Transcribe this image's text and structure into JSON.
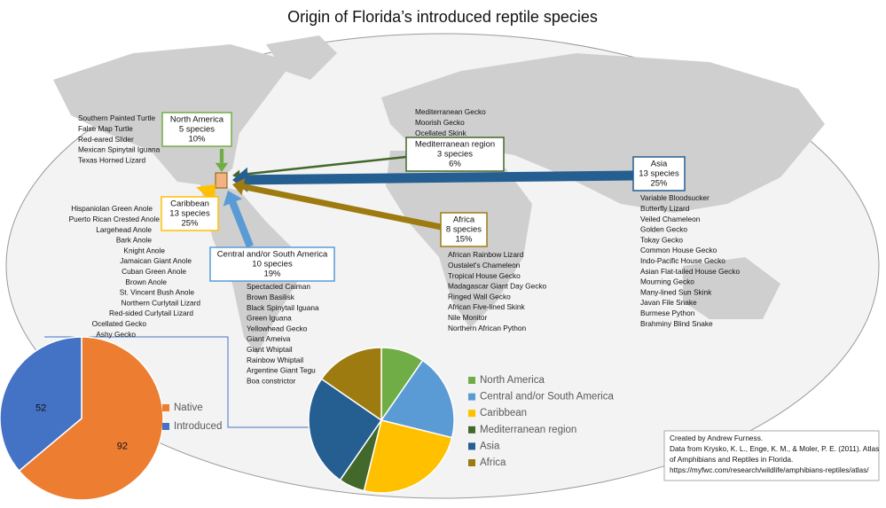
{
  "title": "Origin of Florida’s introduced reptile species",
  "regions": [
    {
      "name": "North America",
      "count": "5 species",
      "share": "10%",
      "species": [
        "Southern Painted Turtle",
        "False Map Turtle",
        "Red-eared Slider",
        "Mexican Spinytail Iguana",
        "Texas Horned Lizard"
      ]
    },
    {
      "name": "Central and/or South America",
      "count": "10 species",
      "share": "19%",
      "species": [
        "Spectacled Caiman",
        "Brown Basilisk",
        "Black Spinytail Iguana",
        "Green Iguana",
        "Yellowhead Gecko",
        "Giant Ameiva",
        "Giant Whiptail",
        "Rainbow Whiptail",
        "Argentine Giant Tegu",
        "Boa constrictor"
      ]
    },
    {
      "name": "Caribbean",
      "count": "13 species",
      "share": "25%",
      "species": [
        "Hispaniolan Green Anole",
        "Puerto Rican Crested Anole",
        "Largehead Anole",
        "Bark Anole",
        "Knight Anole",
        "Jamaican Giant Anole",
        "Cuban Green Anole",
        "Brown Anole",
        "St. Vincent Bush Anole",
        "Northern Curlytail Lizard",
        "Red-sided Curlytail Lizard",
        "Ocellated Gecko",
        "Ashy Gecko"
      ]
    },
    {
      "name": "Mediterranean region",
      "count": "3 species",
      "share": "6%",
      "species": [
        "Mediterranean Gecko",
        "Moorish Gecko",
        "Ocellated Skink"
      ]
    },
    {
      "name": "Asia",
      "count": "13 species",
      "share": "25%",
      "species": [
        "Variable Bloodsucker",
        "Butterfly Lizard",
        "Veiled Chameleon",
        "Golden Gecko",
        "Tokay Gecko",
        "Common House Gecko",
        "Indo-Pacific House Gecko",
        "Asian Flat-tailed House Gecko",
        "Mourning Gecko",
        "Many-lined Sun Skink",
        "Javan File Snake",
        "Burmese Python",
        "Brahminy Blind Snake"
      ]
    },
    {
      "name": "Africa",
      "count": "8 species",
      "share": "15%",
      "species": [
        "African Rainbow Lizard",
        "Oustalet's Chameleon",
        "Tropical House Gecko",
        "Madagascar Giant Day Gecko",
        "Ringed Wall Gecko",
        "African Five-lined Skink",
        "Nile Monitor",
        "Northern African Python"
      ]
    }
  ],
  "credit": [
    "Created by Andrew Furness.",
    "Data from Krysko, K. L., Enge, K. M., & Moler, P. E. (2011). Atlas",
    "of Amphibians and Reptiles in Florida.",
    "https://myfwc.com/research/wildlife/amphibians-reptiles/atlas/"
  ],
  "chart_data": [
    {
      "type": "pie",
      "categories": [
        "Native",
        "Introduced"
      ],
      "values": [
        92,
        52
      ],
      "colors": [
        "#ed7d31",
        "#4472c4"
      ]
    },
    {
      "type": "pie",
      "categories": [
        "North America",
        "Central and/or South America",
        "Caribbean",
        "Mediterranean region",
        "Asia",
        "Africa"
      ],
      "values": [
        5,
        10,
        13,
        3,
        13,
        8
      ],
      "colors": [
        "#70ad47",
        "#5b9bd5",
        "#ffc000",
        "#43682b",
        "#255e91",
        "#9e7b10"
      ]
    }
  ]
}
